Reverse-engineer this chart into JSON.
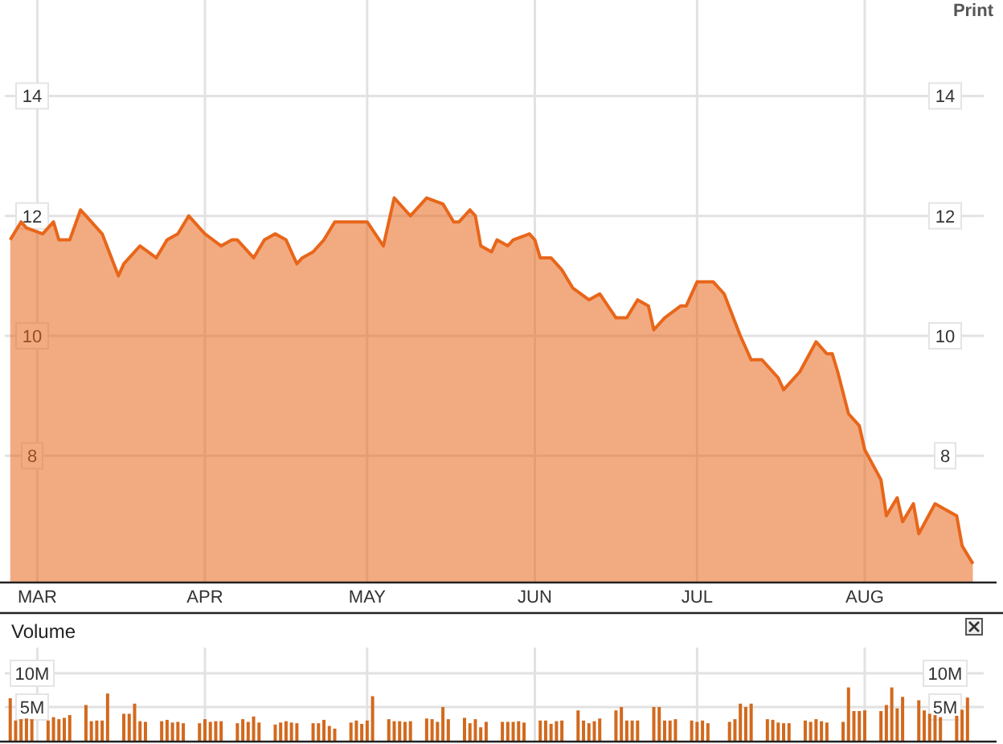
{
  "chart_data": [
    {
      "type": "area",
      "annotations": [
        "Print"
      ],
      "xlim": [
        "--02-24",
        "--08-23"
      ],
      "xticks": [
        {
          "value": "--03-01",
          "label": "MAR"
        },
        {
          "value": "--04-01",
          "label": "APR"
        },
        {
          "value": "--05-01",
          "label": "MAY"
        },
        {
          "value": "--06-01",
          "label": "JUN"
        },
        {
          "value": "--07-01",
          "label": "JUL"
        },
        {
          "value": "--08-01",
          "label": "AUG"
        }
      ],
      "ylim": [
        5.9,
        15.6
      ],
      "yticks": [
        8,
        10,
        12,
        14
      ],
      "y2lim": [
        5.9,
        15.6
      ],
      "y2ticks": [
        8,
        10,
        12,
        14
      ],
      "grid": true,
      "series": [
        {
          "color": "#e8661a",
          "x": [
            "--02-25",
            "--02-27",
            "--02-28",
            "--03-02",
            "--03-04",
            "--03-05",
            "--03-07",
            "--03-09",
            "--03-10",
            "--03-13",
            "--03-16",
            "--03-17",
            "--03-20",
            "--03-23",
            "--03-25",
            "--03-27",
            "--03-29",
            "--03-30",
            "--04-01",
            "--04-04",
            "--04-06",
            "--04-07",
            "--04-10",
            "--04-12",
            "--04-14",
            "--04-16",
            "--04-18",
            "--04-19",
            "--04-21",
            "--04-23",
            "--04-25",
            "--04-27",
            "--04-29",
            "--05-01",
            "--05-04",
            "--05-06",
            "--05-08",
            "--05-09",
            "--05-12",
            "--05-15",
            "--05-17",
            "--05-18",
            "--05-20",
            "--05-21",
            "--05-22",
            "--05-24",
            "--05-25",
            "--05-27",
            "--05-28",
            "--05-31",
            "--06-01",
            "--06-02",
            "--06-04",
            "--06-06",
            "--06-08",
            "--06-11",
            "--06-13",
            "--06-16",
            "--06-18",
            "--06-20",
            "--06-22",
            "--06-23",
            "--06-25",
            "--06-28",
            "--06-29",
            "--07-01",
            "--07-04",
            "--07-06",
            "--07-09",
            "--07-11",
            "--07-13",
            "--07-15",
            "--07-16",
            "--07-17",
            "--07-20",
            "--07-23",
            "--07-25",
            "--07-26",
            "--07-27",
            "--07-29",
            "--07-31",
            "--08-01",
            "--08-04",
            "--08-05",
            "--08-07",
            "--08-08",
            "--08-10",
            "--08-11",
            "--08-14",
            "--08-18",
            "--08-19",
            "--08-21"
          ],
          "values": [
            11.6,
            11.9,
            11.8,
            11.7,
            11.9,
            11.6,
            11.6,
            12.1,
            12.0,
            11.7,
            11.0,
            11.2,
            11.5,
            11.3,
            11.6,
            11.7,
            12.0,
            11.9,
            11.7,
            11.5,
            11.6,
            11.6,
            11.3,
            11.6,
            11.7,
            11.6,
            11.2,
            11.3,
            11.4,
            11.6,
            11.9,
            11.9,
            11.9,
            11.9,
            11.5,
            12.3,
            12.1,
            12.0,
            12.3,
            12.2,
            11.9,
            11.9,
            12.1,
            12.0,
            11.5,
            11.4,
            11.6,
            11.5,
            11.6,
            11.7,
            11.6,
            11.3,
            11.3,
            11.1,
            10.8,
            10.6,
            10.7,
            10.3,
            10.3,
            10.6,
            10.5,
            10.1,
            10.3,
            10.5,
            10.5,
            10.9,
            10.9,
            10.7,
            10.0,
            9.6,
            9.6,
            9.4,
            9.3,
            9.1,
            9.4,
            9.9,
            9.7,
            9.7,
            9.4,
            8.7,
            8.5,
            8.1,
            7.6,
            7.0,
            7.3,
            6.9,
            7.2,
            6.7,
            7.2,
            7.0,
            6.5,
            6.2
          ]
        }
      ]
    },
    {
      "type": "bar",
      "title": "Volume",
      "tick_labels": "y",
      "xlim": [
        "--02-24",
        "--08-23"
      ],
      "xticks": [
        {
          "value": "--03-01",
          "label": null
        },
        {
          "value": "--04-01",
          "label": null
        },
        {
          "value": "--05-01",
          "label": null
        },
        {
          "value": "--06-01",
          "label": null
        },
        {
          "value": "--07-01",
          "label": null
        },
        {
          "value": "--08-01",
          "label": null
        }
      ],
      "ylim": [
        0,
        13.8
      ],
      "yticks": [
        {
          "value": 5,
          "label": "5M"
        },
        {
          "value": 10,
          "label": "10M"
        }
      ],
      "y2lim": [
        0,
        13.8
      ],
      "y2ticks": [
        {
          "value": 5,
          "label": "5M"
        },
        {
          "value": 10,
          "label": "10M"
        }
      ],
      "grid": true,
      "series": [
        {
          "color": "#d2691e",
          "x": [
            "--02-25",
            "--02-26",
            "--02-27",
            "--02-28",
            "--02-29",
            "--03-03",
            "--03-04",
            "--03-05",
            "--03-06",
            "--03-07",
            "--03-10",
            "--03-11",
            "--03-12",
            "--03-13",
            "--03-14",
            "--03-17",
            "--03-18",
            "--03-19",
            "--03-20",
            "--03-21",
            "--03-24",
            "--03-25",
            "--03-26",
            "--03-27",
            "--03-28",
            "--03-31",
            "--04-01",
            "--04-02",
            "--04-03",
            "--04-04",
            "--04-07",
            "--04-08",
            "--04-09",
            "--04-10",
            "--04-11",
            "--04-14",
            "--04-15",
            "--04-16",
            "--04-17",
            "--04-18",
            "--04-21",
            "--04-22",
            "--04-23",
            "--04-24",
            "--04-25",
            "--04-28",
            "--04-29",
            "--04-30",
            "--05-01",
            "--05-02",
            "--05-05",
            "--05-06",
            "--05-07",
            "--05-08",
            "--05-09",
            "--05-12",
            "--05-13",
            "--05-14",
            "--05-15",
            "--05-16",
            "--05-19",
            "--05-20",
            "--05-21",
            "--05-22",
            "--05-23",
            "--05-26",
            "--05-27",
            "--05-28",
            "--05-29",
            "--05-30",
            "--06-02",
            "--06-03",
            "--06-04",
            "--06-05",
            "--06-06",
            "--06-09",
            "--06-10",
            "--06-11",
            "--06-12",
            "--06-13",
            "--06-16",
            "--06-17",
            "--06-18",
            "--06-19",
            "--06-20",
            "--06-23",
            "--06-24",
            "--06-25",
            "--06-26",
            "--06-27",
            "--06-30",
            "--07-01",
            "--07-02",
            "--07-03",
            "--07-07",
            "--07-08",
            "--07-09",
            "--07-10",
            "--07-11",
            "--07-14",
            "--07-15",
            "--07-16",
            "--07-17",
            "--07-18",
            "--07-21",
            "--07-22",
            "--07-23",
            "--07-24",
            "--07-25",
            "--07-28",
            "--07-29",
            "--07-30",
            "--07-31",
            "--08-01",
            "--08-04",
            "--08-05",
            "--08-06",
            "--08-07",
            "--08-08",
            "--08-11",
            "--08-12",
            "--08-13",
            "--08-14",
            "--08-15",
            "--08-18",
            "--08-19",
            "--08-20"
          ],
          "values": [
            6.3,
            3.0,
            3.2,
            3.3,
            3.2,
            3.0,
            3.5,
            3.2,
            3.4,
            3.8,
            5.3,
            2.9,
            3.0,
            3.0,
            7.0,
            4.0,
            4.0,
            5.5,
            2.9,
            2.8,
            2.9,
            3.1,
            2.7,
            2.8,
            2.6,
            2.6,
            3.2,
            2.8,
            2.9,
            2.9,
            2.6,
            3.2,
            2.8,
            3.6,
            2.7,
            2.4,
            2.7,
            2.9,
            2.7,
            2.6,
            2.6,
            2.6,
            3.1,
            2.2,
            1.8,
            2.7,
            3.0,
            2.5,
            3.0,
            6.6,
            3.2,
            2.9,
            2.9,
            2.8,
            2.9,
            3.3,
            3.2,
            2.8,
            5.0,
            3.2,
            3.4,
            2.6,
            3.2,
            2.0,
            2.8,
            2.8,
            2.8,
            2.8,
            2.9,
            2.7,
            3.0,
            3.0,
            2.5,
            2.9,
            3.0,
            4.5,
            3.0,
            2.6,
            2.9,
            3.3,
            4.5,
            5.0,
            3.0,
            3.0,
            3.0,
            5.0,
            5.0,
            3.0,
            3.0,
            3.2,
            3.0,
            2.8,
            3.0,
            2.6,
            2.8,
            3.2,
            5.5,
            5.0,
            5.5,
            3.2,
            3.1,
            2.7,
            2.6,
            2.6,
            3.0,
            2.8,
            3.2,
            2.9,
            2.7,
            2.8,
            7.9,
            4.4,
            4.4,
            4.5,
            4.4,
            5.3,
            7.9,
            4.8,
            6.5,
            6.0,
            4.5,
            4.0,
            3.8,
            3.5,
            3.7,
            4.6,
            6.4
          ]
        }
      ]
    }
  ]
}
